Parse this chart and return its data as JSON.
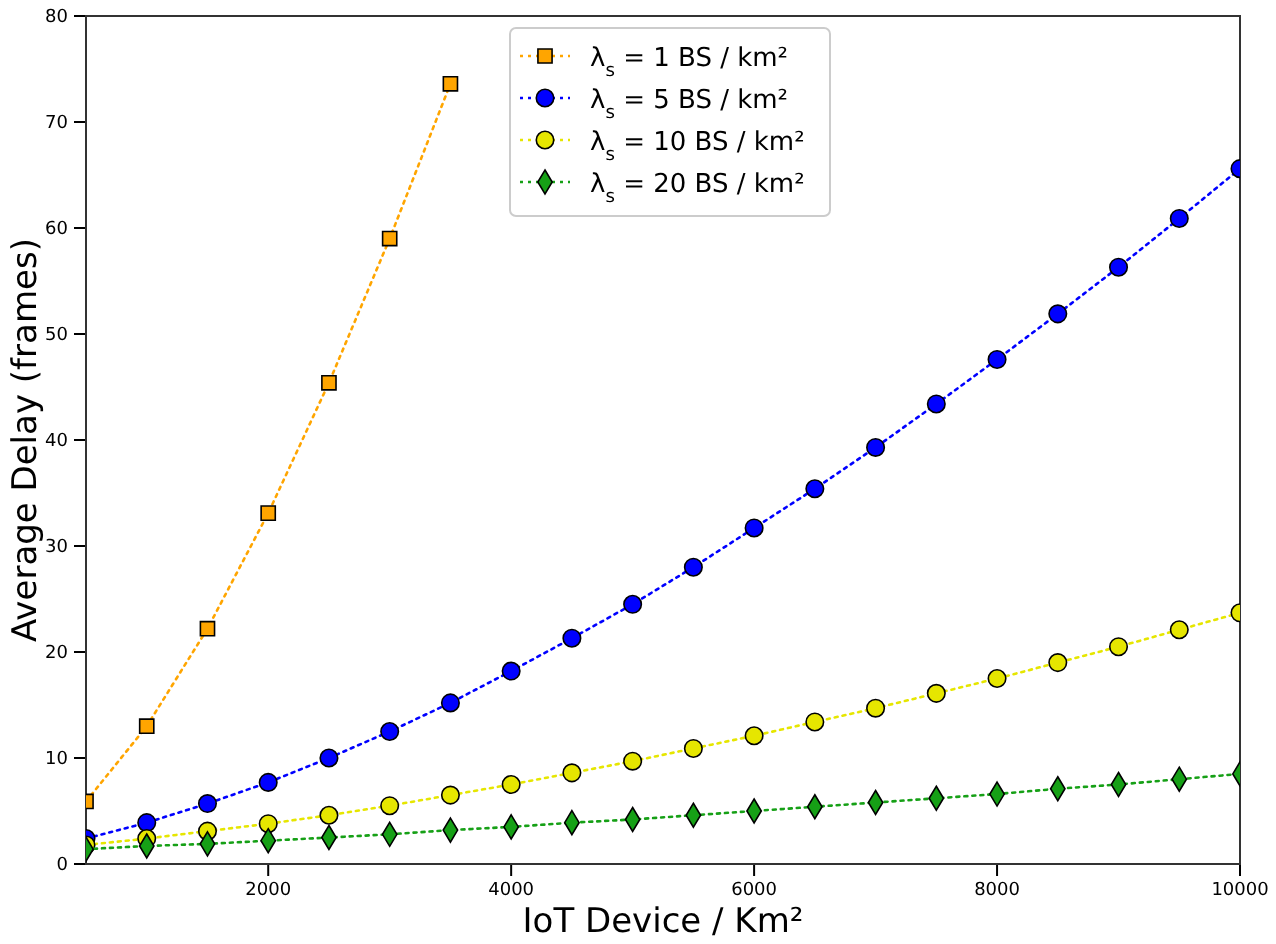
{
  "chart_data": {
    "type": "line",
    "xlabel": "IoT Device / Km²",
    "ylabel": "Average Delay (frames)",
    "x": [
      500,
      1000,
      1500,
      2000,
      2500,
      3000,
      3500,
      4000,
      4500,
      5000,
      5500,
      6000,
      6500,
      7000,
      7500,
      8000,
      8500,
      9000,
      9500,
      10000
    ],
    "series": [
      {
        "name": "λ$_{s}$ = 1 BS / km²",
        "color": "#ffa500",
        "marker": "square",
        "values": [
          5.9,
          13.0,
          22.2,
          33.1,
          45.4,
          59.0,
          73.6,
          null,
          null,
          null,
          null,
          null,
          null,
          null,
          null,
          null,
          null,
          null,
          null,
          null
        ]
      },
      {
        "name": "λ$_{s}$ = 5 BS / km²",
        "color": "#0000ff",
        "marker": "circle",
        "values": [
          2.4,
          3.9,
          5.7,
          7.7,
          10.0,
          12.5,
          15.2,
          18.2,
          21.3,
          24.5,
          28.0,
          31.7,
          35.4,
          39.3,
          43.4,
          47.6,
          51.9,
          56.3,
          60.9,
          65.6
        ]
      },
      {
        "name": "λ$_{s}$ = 10 BS / km²",
        "color": "#e6e600",
        "marker": "circle",
        "values": [
          1.8,
          2.4,
          3.1,
          3.8,
          4.6,
          5.5,
          6.5,
          7.5,
          8.6,
          9.7,
          10.9,
          12.1,
          13.4,
          14.7,
          16.1,
          17.5,
          19.0,
          20.5,
          22.1,
          23.7
        ]
      },
      {
        "name": "λ$_{s}$ = 20 BS / km²",
        "color": "#16a016",
        "marker": "diamond",
        "values": [
          1.4,
          1.7,
          1.9,
          2.2,
          2.5,
          2.8,
          3.2,
          3.5,
          3.9,
          4.2,
          4.6,
          5.0,
          5.4,
          5.8,
          6.2,
          6.6,
          7.1,
          7.5,
          8.0,
          8.5
        ]
      }
    ],
    "xlim": [
      500,
      10000
    ],
    "xticks": [
      2000,
      4000,
      6000,
      8000,
      10000
    ],
    "ylim": [
      0,
      80
    ],
    "yticks": [
      0,
      10,
      20,
      30,
      40,
      50,
      60,
      70,
      80
    ],
    "grid": false,
    "legend": "top",
    "line_style": "dotted"
  }
}
